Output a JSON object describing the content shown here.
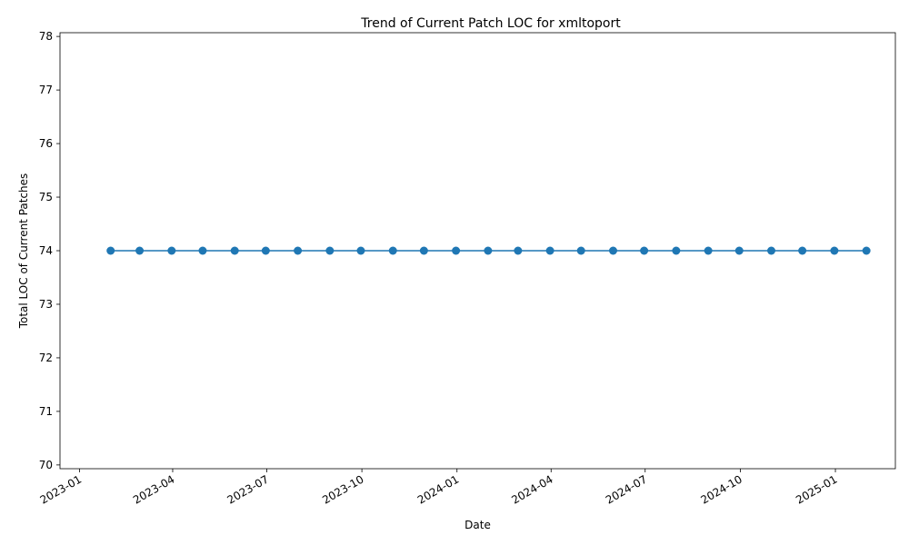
{
  "chart_data": {
    "type": "line",
    "title": "Trend of Current Patch LOC for xmltoport",
    "xlabel": "Date",
    "ylabel": "Total LOC of Current Patches",
    "xlim": [
      "2022-12-13",
      "2025-02-28"
    ],
    "ylim": [
      69.93,
      78.07
    ],
    "x_ticks": [
      "2023-01",
      "2023-04",
      "2023-07",
      "2023-10",
      "2024-01",
      "2024-04",
      "2024-07",
      "2024-10",
      "2025-01"
    ],
    "y_ticks": [
      70,
      71,
      72,
      73,
      74,
      75,
      76,
      77,
      78
    ],
    "grid": false,
    "legend": "none",
    "color": "#1f77b4",
    "series": [
      {
        "x": [
          "2023-01-31",
          "2023-02-28",
          "2023-03-31",
          "2023-04-30",
          "2023-05-31",
          "2023-06-30",
          "2023-07-31",
          "2023-08-31",
          "2023-09-30",
          "2023-10-31",
          "2023-11-30",
          "2023-12-31",
          "2024-01-31",
          "2024-02-29",
          "2024-03-31",
          "2024-04-30",
          "2024-05-31",
          "2024-06-30",
          "2024-07-31",
          "2024-08-31",
          "2024-09-30",
          "2024-10-31",
          "2024-11-30",
          "2024-12-31",
          "2025-01-31"
        ],
        "values": [
          74,
          74,
          74,
          74,
          74,
          74,
          74,
          74,
          74,
          74,
          74,
          74,
          74,
          74,
          74,
          74,
          74,
          74,
          74,
          74,
          74,
          74,
          74,
          74,
          74
        ]
      }
    ]
  }
}
